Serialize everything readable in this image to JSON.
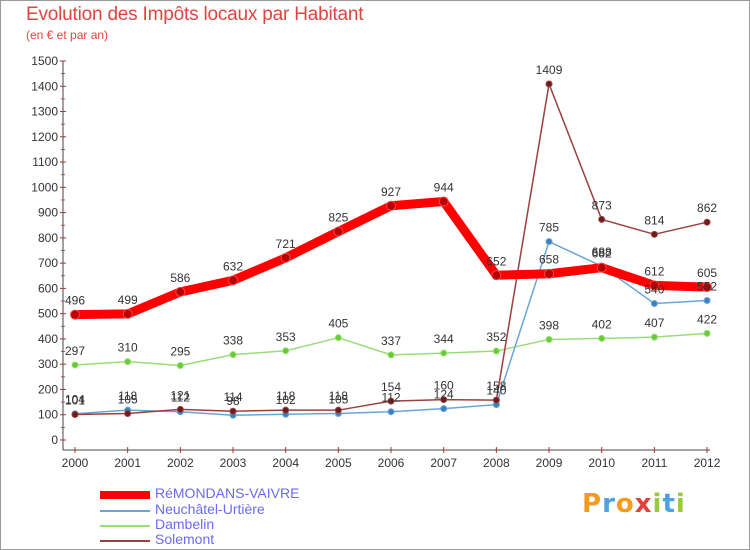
{
  "header": {
    "title": "Evolution des Impôts locaux par Habitant",
    "subtitle": "(en € et par an)"
  },
  "chart_data": {
    "type": "line",
    "x": [
      "2000",
      "2001",
      "2002",
      "2003",
      "2004",
      "2005",
      "2006",
      "2007",
      "2008",
      "2009",
      "2010",
      "2011",
      "2012"
    ],
    "ylim": [
      0,
      1500
    ],
    "yticks": [
      0,
      100,
      200,
      300,
      400,
      500,
      600,
      700,
      800,
      900,
      1000,
      1100,
      1200,
      1300,
      1400,
      1500
    ],
    "grid": false,
    "legend_position": "bottom-left",
    "series": [
      {
        "name": "RéMONDANS-VAIVRE",
        "color": "#ff0000",
        "marker": "#b80000",
        "values": [
          496,
          499,
          586,
          632,
          721,
          825,
          927,
          944,
          652,
          658,
          682,
          612,
          605
        ],
        "labels": [
          "496",
          "499",
          "586",
          "632",
          "721",
          "825",
          "927",
          "944",
          "652",
          "658",
          "682",
          "612",
          "605"
        ]
      },
      {
        "name": "Neuchâtel-Urtière",
        "color": "#6aa5d9",
        "marker": "#3c7fbf",
        "values": [
          104,
          118,
          112,
          98,
          102,
          105,
          112,
          124,
          140,
          785,
          688,
          540,
          552
        ],
        "labels": [
          "104",
          "118",
          "112",
          "98",
          "102",
          "105",
          "112",
          "124",
          "140",
          "785",
          "688",
          "540",
          "552"
        ]
      },
      {
        "name": "Dambelin",
        "color": "#99dd77",
        "marker": "#66cc33",
        "values": [
          297,
          310,
          295,
          338,
          353,
          405,
          337,
          344,
          352,
          398,
          402,
          407,
          422
        ],
        "labels": [
          "297",
          "310",
          "295",
          "338",
          "353",
          "405",
          "337",
          "344",
          "352",
          "398",
          "402",
          "407",
          "422"
        ]
      },
      {
        "name": "Solemont",
        "color": "#9b4040",
        "marker": "#6b1c1c",
        "values": [
          101,
          105,
          121,
          114,
          118,
          118,
          154,
          160,
          158,
          1409,
          873,
          814,
          862
        ],
        "labels": [
          "101",
          "105",
          "121",
          "114",
          "118",
          "118",
          "154",
          "160",
          "158",
          "1409",
          "873",
          "814",
          "862"
        ]
      }
    ]
  },
  "logo": {
    "letters": [
      "P",
      "r",
      "o",
      "x",
      "i",
      "t",
      "i"
    ],
    "colors": [
      "#f49b1f",
      "#4da3df",
      "#f49b1f",
      "#e2403a",
      "#9bc93b",
      "#4da3df",
      "#9bc93b"
    ]
  }
}
